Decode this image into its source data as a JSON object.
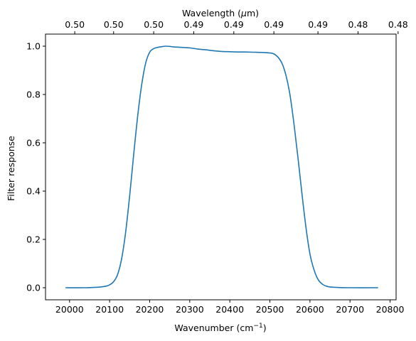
{
  "chart_data": {
    "type": "line",
    "title": "",
    "xlabel": "Wavenumber (cm",
    "xlabel_sup": "−1",
    "xlabel_close": ")",
    "ylabel": "Filter response",
    "top_xlabel": "Wavelength (",
    "top_xlabel_mu": "μ",
    "top_xlabel_unit": "m)",
    "xlim": [
      19940,
      20815
    ],
    "ylim": [
      -0.05,
      1.05
    ],
    "grid": false,
    "x_ticks": [
      20000,
      20100,
      20200,
      20300,
      20400,
      20500,
      20600,
      20700,
      20800
    ],
    "x_tick_labels": [
      "20000",
      "20100",
      "20200",
      "20300",
      "20400",
      "20500",
      "20600",
      "20700",
      "20800"
    ],
    "y_ticks": [
      0.0,
      0.2,
      0.4,
      0.6,
      0.8,
      1.0
    ],
    "y_tick_labels": [
      "0.0",
      "0.2",
      "0.4",
      "0.6",
      "0.8",
      "1.0"
    ],
    "top_ticks_at_wavenumber": [
      20013,
      20110,
      20210,
      20310,
      20410,
      20510,
      20620,
      20720,
      20820
    ],
    "top_tick_labels": [
      "0.50",
      "0.50",
      "0.50",
      "0.49",
      "0.49",
      "0.49",
      "0.49",
      "0.48",
      "0.48"
    ],
    "line_color": "#1f77b4",
    "series": [
      {
        "x": [
          19990,
          20040,
          20070,
          20090,
          20100,
          20110,
          20120,
          20130,
          20140,
          20150,
          20160,
          20170,
          20180,
          20190,
          20200,
          20210,
          20220,
          20230,
          20240,
          20250,
          20260,
          20280,
          20300,
          20320,
          20340,
          20360,
          20380,
          20400,
          20420,
          20440,
          20460,
          20480,
          20500,
          20510,
          20520,
          20530,
          20540,
          20550,
          20560,
          20570,
          20580,
          20590,
          20600,
          20610,
          20620,
          20630,
          20640,
          20650,
          20670,
          20700,
          20770
        ],
        "y": [
          0.0,
          0.0,
          0.002,
          0.006,
          0.012,
          0.025,
          0.055,
          0.12,
          0.23,
          0.38,
          0.55,
          0.71,
          0.84,
          0.93,
          0.975,
          0.99,
          0.995,
          0.998,
          1.0,
          0.999,
          0.997,
          0.995,
          0.993,
          0.988,
          0.985,
          0.981,
          0.978,
          0.977,
          0.976,
          0.976,
          0.975,
          0.974,
          0.972,
          0.968,
          0.955,
          0.93,
          0.88,
          0.8,
          0.68,
          0.54,
          0.39,
          0.25,
          0.14,
          0.075,
          0.035,
          0.016,
          0.007,
          0.003,
          0.001,
          0.0,
          0.0
        ]
      }
    ]
  }
}
